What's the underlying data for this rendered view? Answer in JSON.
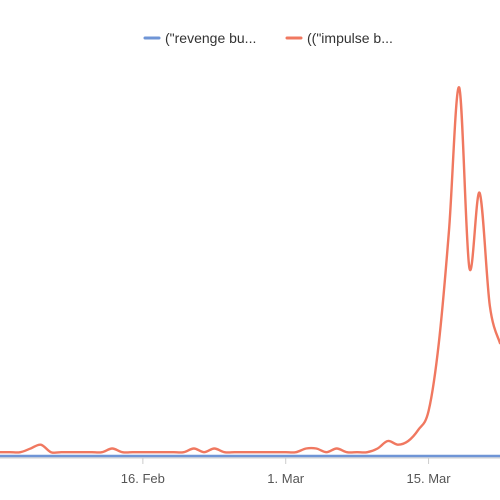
{
  "chart_data": {
    "type": "line",
    "x_axis": {
      "tick_labels": [
        {
          "label": "16. Feb",
          "x": 16
        },
        {
          "label": "1. Mar",
          "x": 30
        },
        {
          "label": "15. Mar",
          "x": 44
        }
      ],
      "range": [
        2,
        51
      ]
    },
    "y_axis": {
      "range": [
        0,
        100
      ]
    },
    "legend": {
      "placement": "top-center"
    },
    "grid": false,
    "series": [
      {
        "name": "(\"revenge bu...",
        "color": "#6f95d6",
        "x": [
          2,
          51
        ],
        "y": [
          0,
          0
        ]
      },
      {
        "name": "((\"impulse b...",
        "color": "#f07860",
        "x": [
          2,
          3,
          4,
          5,
          6,
          7,
          8,
          9,
          10,
          11,
          12,
          13,
          14,
          15,
          16,
          17,
          18,
          19,
          20,
          21,
          22,
          23,
          24,
          25,
          26,
          27,
          28,
          29,
          30,
          31,
          32,
          33,
          34,
          35,
          36,
          37,
          38,
          39,
          40,
          41,
          42,
          43,
          44,
          45,
          46,
          47,
          48,
          49,
          50,
          51
        ],
        "y": [
          1,
          1,
          1,
          2,
          3,
          1,
          1,
          1,
          1,
          1,
          1,
          2,
          1,
          1,
          1,
          1,
          1,
          1,
          1,
          2,
          1,
          2,
          1,
          1,
          1,
          1,
          1,
          1,
          1,
          1,
          2,
          2,
          1,
          2,
          1,
          1,
          1,
          2,
          4,
          3,
          4,
          7,
          12,
          30,
          60,
          98,
          50,
          70,
          40,
          30
        ]
      }
    ]
  }
}
